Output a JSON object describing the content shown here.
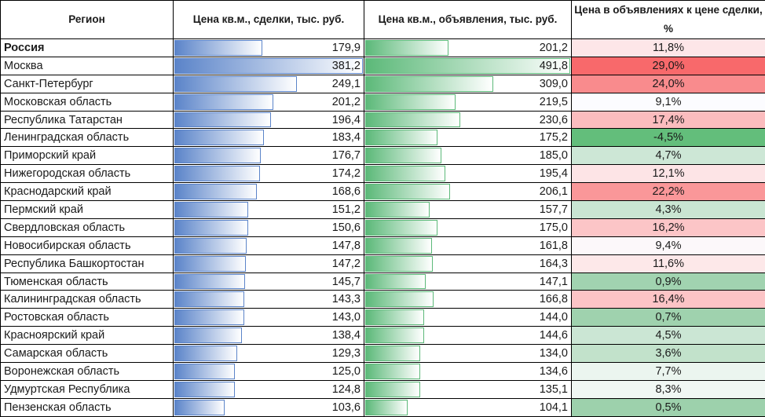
{
  "headers": [
    "Регион",
    "Цена кв.м., сделки, тыс. руб.",
    "Цена кв.м., объявления, тыс. руб.",
    "Цена в объявлениях к цене сделки, %"
  ],
  "rows": [
    {
      "region": "Россия",
      "deal": "179,9",
      "ad": "201,2",
      "pct": "11,8%",
      "color": "#fde6e8",
      "bold": true
    },
    {
      "region": "Москва",
      "deal": "381,2",
      "ad": "491,8",
      "pct": "29,0%",
      "color": "#f8696b"
    },
    {
      "region": "Санкт-Петербург",
      "deal": "249,1",
      "ad": "309,0",
      "pct": "24,0%",
      "color": "#f98b8d"
    },
    {
      "region": "Московская область",
      "deal": "201,2",
      "ad": "219,5",
      "pct": "9,1%",
      "color": "#fcfcff"
    },
    {
      "region": "Республика Татарстан",
      "deal": "196,4",
      "ad": "230,6",
      "pct": "17,4%",
      "color": "#fbbcbe"
    },
    {
      "region": "Ленинградская область",
      "deal": "183,4",
      "ad": "175,2",
      "pct": "-4,5%",
      "color": "#63be7b"
    },
    {
      "region": "Приморский край",
      "deal": "176,7",
      "ad": "185,0",
      "pct": "4,7%",
      "color": "#cde7d6"
    },
    {
      "region": "Нижегородская область",
      "deal": "174,2",
      "ad": "195,4",
      "pct": "12,1%",
      "color": "#fde4e6"
    },
    {
      "region": "Краснодарский край",
      "deal": "168,6",
      "ad": "206,1",
      "pct": "22,2%",
      "color": "#fa9799"
    },
    {
      "region": "Пермский край",
      "deal": "151,2",
      "ad": "157,7",
      "pct": "4,3%",
      "color": "#c9e5d2"
    },
    {
      "region": "Свердловская область",
      "deal": "150,6",
      "ad": "175,0",
      "pct": "16,2%",
      "color": "#fcc5c7"
    },
    {
      "region": "Новосибирская область",
      "deal": "147,8",
      "ad": "161,8",
      "pct": "9,4%",
      "color": "#fcf8fa"
    },
    {
      "region": "Республика Башкортостан",
      "deal": "147,2",
      "ad": "164,3",
      "pct": "11,6%",
      "color": "#fde8e9"
    },
    {
      "region": "Тюменская область",
      "deal": "145,7",
      "ad": "147,1",
      "pct": "0,9%",
      "color": "#a1d3b0"
    },
    {
      "region": "Калининградская область",
      "deal": "143,3",
      "ad": "166,8",
      "pct": "16,4%",
      "color": "#fcc4c6"
    },
    {
      "region": "Ростовская область",
      "deal": "143,0",
      "ad": "144,0",
      "pct": "0,7%",
      "color": "#9fd2ae"
    },
    {
      "region": "Красноярский край",
      "deal": "138,4",
      "ad": "144,6",
      "pct": "4,5%",
      "color": "#cbe6d4"
    },
    {
      "region": "Самарская область",
      "deal": "129,3",
      "ad": "134,0",
      "pct": "3,6%",
      "color": "#c2e2cb"
    },
    {
      "region": "Воронежская область",
      "deal": "125,0",
      "ad": "134,6",
      "pct": "7,7%",
      "color": "#ebf5ef"
    },
    {
      "region": "Удмуртская Республика",
      "deal": "124,8",
      "ad": "135,1",
      "pct": "8,3%",
      "color": "#f0f7f3"
    },
    {
      "region": "Пензенская область",
      "deal": "103,6",
      "ad": "104,1",
      "pct": "0,5%",
      "color": "#9dd1ac"
    }
  ]
}
